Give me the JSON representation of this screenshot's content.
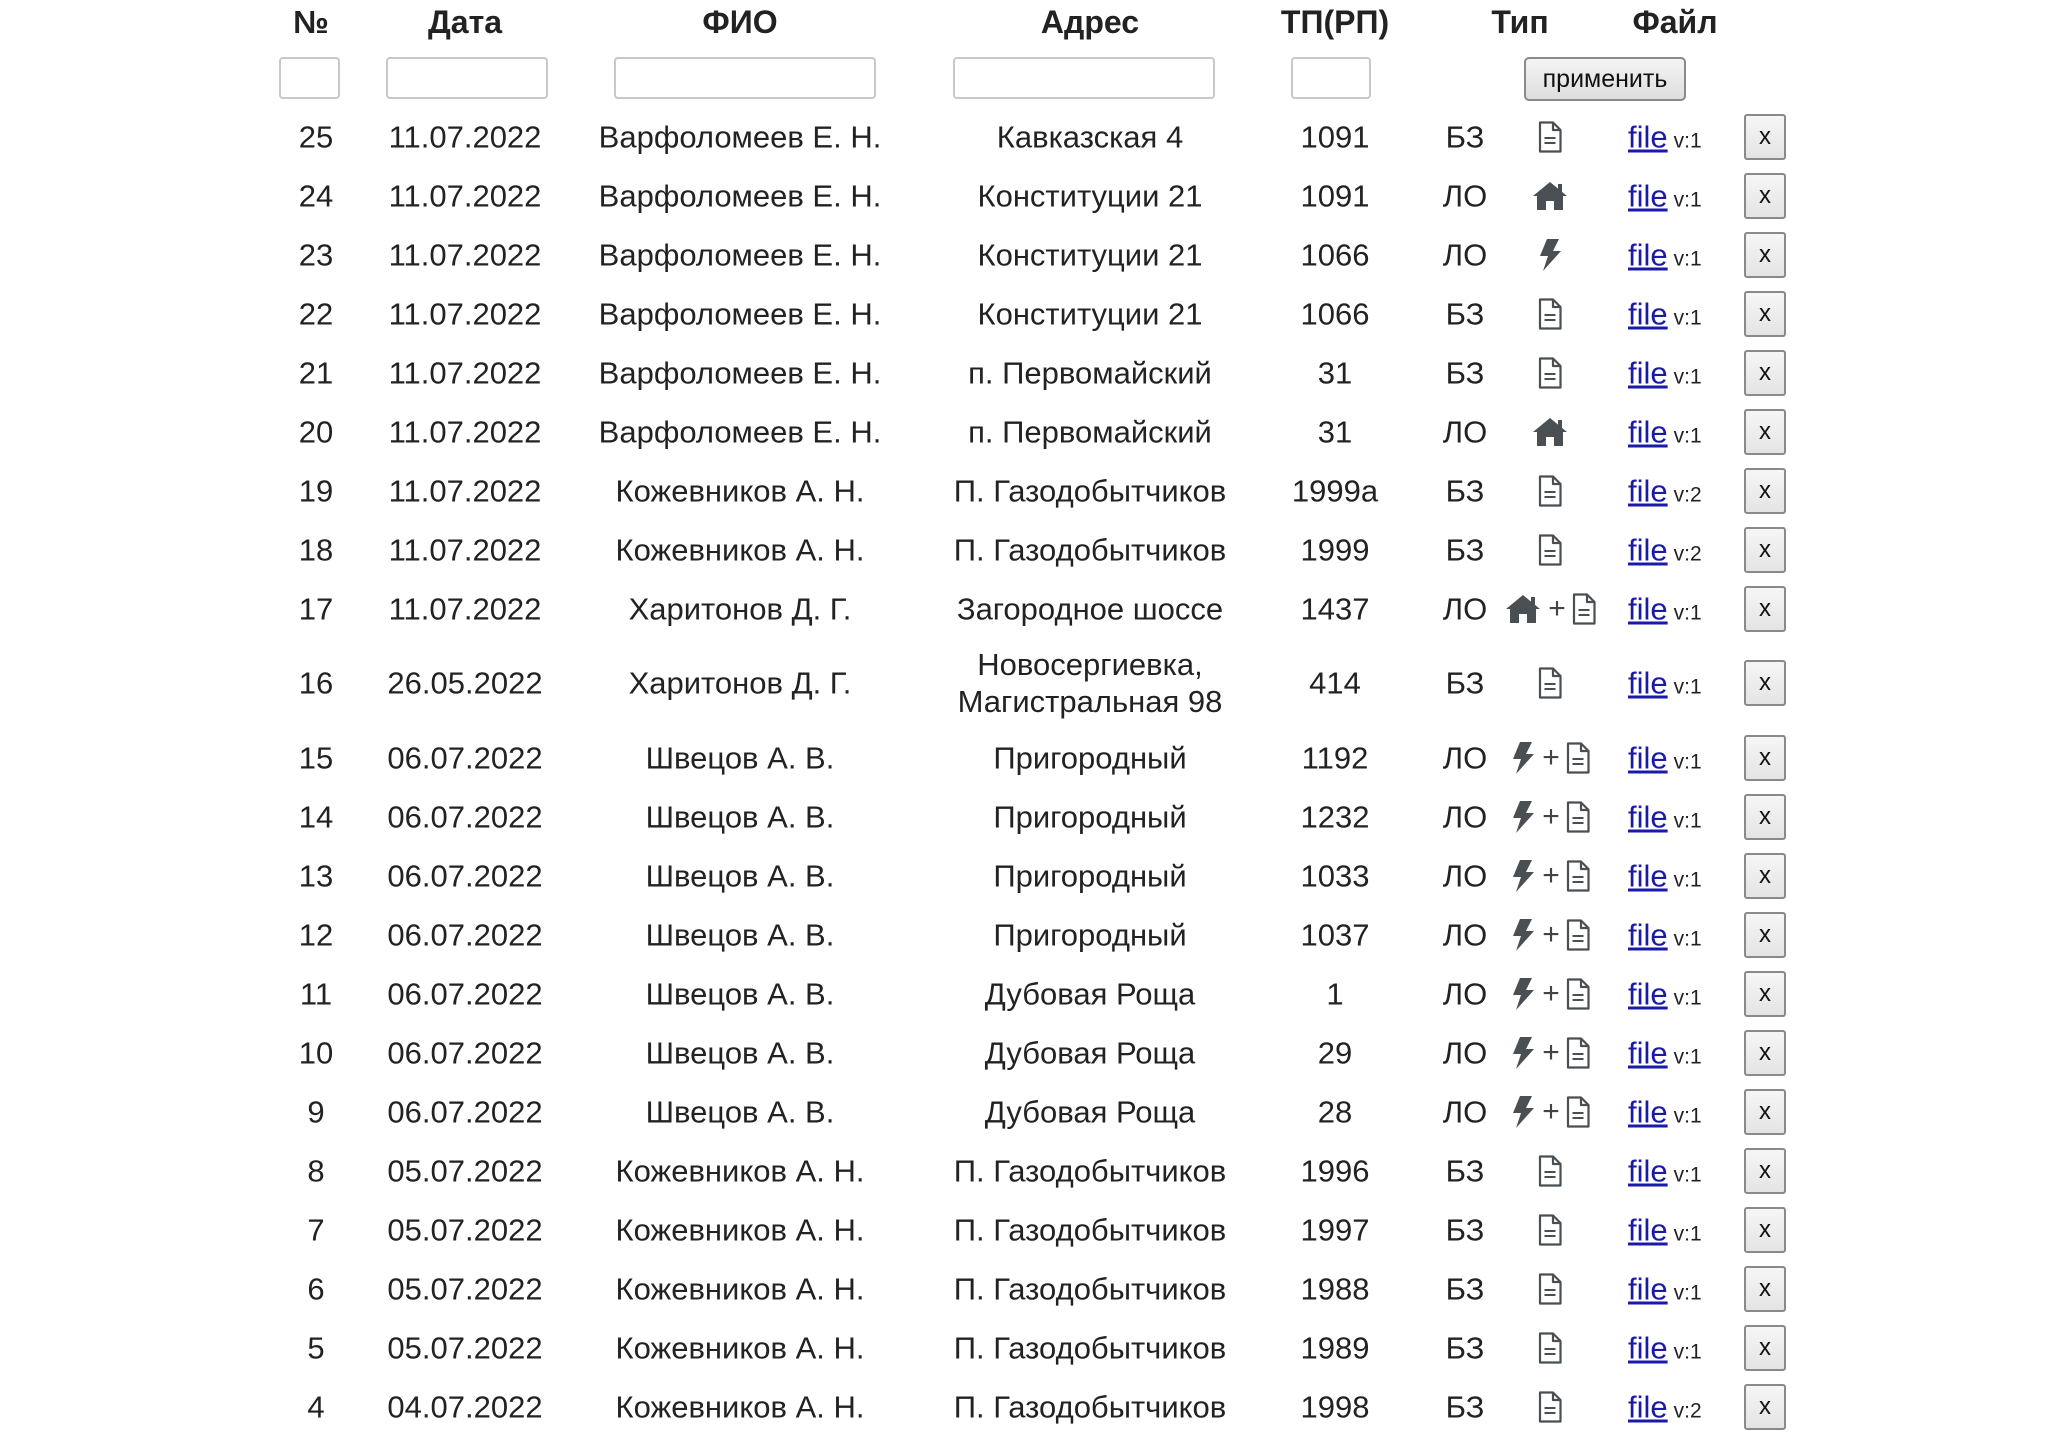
{
  "header": {
    "num": "№",
    "date": "Дата",
    "name": "ФИО",
    "address": "Адрес",
    "tp": "ТП(РП)",
    "type": "Тип",
    "file": "Файл"
  },
  "filters": {
    "num_value": "",
    "date_value": "",
    "name_value": "",
    "address_value": "",
    "tp_value": "",
    "apply_label": "применить"
  },
  "colors": {
    "link": "#1a1aa8",
    "icon": "#4a4f54",
    "text": "#222222"
  },
  "rows": [
    {
      "num": "25",
      "date": "11.07.2022",
      "name": "Варфоломеев Е. Н.",
      "address": "Кавказская 4",
      "tp": "1091",
      "kind": "БЗ",
      "icons": [
        "document-icon"
      ],
      "file": "file",
      "version": "v:1",
      "delete": "x"
    },
    {
      "num": "24",
      "date": "11.07.2022",
      "name": "Варфоломеев Е. Н.",
      "address": "Конституции 21",
      "tp": "1091",
      "kind": "ЛО",
      "icons": [
        "house-icon"
      ],
      "file": "file",
      "version": "v:1",
      "delete": "x"
    },
    {
      "num": "23",
      "date": "11.07.2022",
      "name": "Варфоломеев Е. Н.",
      "address": "Конституции 21",
      "tp": "1066",
      "kind": "ЛО",
      "icons": [
        "lightning-icon"
      ],
      "file": "file",
      "version": "v:1",
      "delete": "x"
    },
    {
      "num": "22",
      "date": "11.07.2022",
      "name": "Варфоломеев Е. Н.",
      "address": "Конституции 21",
      "tp": "1066",
      "kind": "БЗ",
      "icons": [
        "document-icon"
      ],
      "file": "file",
      "version": "v:1",
      "delete": "x"
    },
    {
      "num": "21",
      "date": "11.07.2022",
      "name": "Варфоломеев Е. Н.",
      "address": "п. Первомайский",
      "tp": "31",
      "kind": "БЗ",
      "icons": [
        "document-icon"
      ],
      "file": "file",
      "version": "v:1",
      "delete": "x"
    },
    {
      "num": "20",
      "date": "11.07.2022",
      "name": "Варфоломеев Е. Н.",
      "address": "п. Первомайский",
      "tp": "31",
      "kind": "ЛО",
      "icons": [
        "house-icon"
      ],
      "file": "file",
      "version": "v:1",
      "delete": "x"
    },
    {
      "num": "19",
      "date": "11.07.2022",
      "name": "Кожевников А. Н.",
      "address": "П. Газодобытчиков",
      "tp": "1999а",
      "kind": "БЗ",
      "icons": [
        "document-icon"
      ],
      "file": "file",
      "version": "v:2",
      "delete": "x"
    },
    {
      "num": "18",
      "date": "11.07.2022",
      "name": "Кожевников А. Н.",
      "address": "П. Газодобытчиков",
      "tp": "1999",
      "kind": "БЗ",
      "icons": [
        "document-icon"
      ],
      "file": "file",
      "version": "v:2",
      "delete": "x"
    },
    {
      "num": "17",
      "date": "11.07.2022",
      "name": "Харитонов Д. Г.",
      "address": "Загородное шоссе",
      "tp": "1437",
      "kind": "ЛО",
      "icons": [
        "house-icon",
        "document-icon"
      ],
      "file": "file",
      "version": "v:1",
      "delete": "x"
    },
    {
      "num": "16",
      "date": "26.05.2022",
      "name": "Харитонов Д. Г.",
      "address": "Новосергиевка,",
      "address2": "Магистральная 98",
      "tp": "414",
      "kind": "БЗ",
      "icons": [
        "document-icon"
      ],
      "file": "file",
      "version": "v:1",
      "delete": "x"
    },
    {
      "num": "15",
      "date": "06.07.2022",
      "name": "Швецов А. В.",
      "address": "Пригородный",
      "tp": "1192",
      "kind": "ЛО",
      "icons": [
        "lightning-icon",
        "document-icon"
      ],
      "file": "file",
      "version": "v:1",
      "delete": "x"
    },
    {
      "num": "14",
      "date": "06.07.2022",
      "name": "Швецов А. В.",
      "address": "Пригородный",
      "tp": "1232",
      "kind": "ЛО",
      "icons": [
        "lightning-icon",
        "document-icon"
      ],
      "file": "file",
      "version": "v:1",
      "delete": "x"
    },
    {
      "num": "13",
      "date": "06.07.2022",
      "name": "Швецов А. В.",
      "address": "Пригородный",
      "tp": "1033",
      "kind": "ЛО",
      "icons": [
        "lightning-icon",
        "document-icon"
      ],
      "file": "file",
      "version": "v:1",
      "delete": "x"
    },
    {
      "num": "12",
      "date": "06.07.2022",
      "name": "Швецов А. В.",
      "address": "Пригородный",
      "tp": "1037",
      "kind": "ЛО",
      "icons": [
        "lightning-icon",
        "document-icon"
      ],
      "file": "file",
      "version": "v:1",
      "delete": "x"
    },
    {
      "num": "11",
      "date": "06.07.2022",
      "name": "Швецов А. В.",
      "address": "Дубовая Роща",
      "tp": "1",
      "kind": "ЛО",
      "icons": [
        "lightning-icon",
        "document-icon"
      ],
      "file": "file",
      "version": "v:1",
      "delete": "x"
    },
    {
      "num": "10",
      "date": "06.07.2022",
      "name": "Швецов А. В.",
      "address": "Дубовая Роща",
      "tp": "29",
      "kind": "ЛО",
      "icons": [
        "lightning-icon",
        "document-icon"
      ],
      "file": "file",
      "version": "v:1",
      "delete": "x"
    },
    {
      "num": "9",
      "date": "06.07.2022",
      "name": "Швецов А. В.",
      "address": "Дубовая Роща",
      "tp": "28",
      "kind": "ЛО",
      "icons": [
        "lightning-icon",
        "document-icon"
      ],
      "file": "file",
      "version": "v:1",
      "delete": "x"
    },
    {
      "num": "8",
      "date": "05.07.2022",
      "name": "Кожевников А. Н.",
      "address": "П. Газодобытчиков",
      "tp": "1996",
      "kind": "БЗ",
      "icons": [
        "document-icon"
      ],
      "file": "file",
      "version": "v:1",
      "delete": "x"
    },
    {
      "num": "7",
      "date": "05.07.2022",
      "name": "Кожевников А. Н.",
      "address": "П. Газодобытчиков",
      "tp": "1997",
      "kind": "БЗ",
      "icons": [
        "document-icon"
      ],
      "file": "file",
      "version": "v:1",
      "delete": "x"
    },
    {
      "num": "6",
      "date": "05.07.2022",
      "name": "Кожевников А. Н.",
      "address": "П. Газодобытчиков",
      "tp": "1988",
      "kind": "БЗ",
      "icons": [
        "document-icon"
      ],
      "file": "file",
      "version": "v:1",
      "delete": "x"
    },
    {
      "num": "5",
      "date": "05.07.2022",
      "name": "Кожевников А. Н.",
      "address": "П. Газодобытчиков",
      "tp": "1989",
      "kind": "БЗ",
      "icons": [
        "document-icon"
      ],
      "file": "file",
      "version": "v:1",
      "delete": "x"
    },
    {
      "num": "4",
      "date": "04.07.2022",
      "name": "Кожевников А. Н.",
      "address": "П. Газодобытчиков",
      "tp": "1998",
      "kind": "БЗ",
      "icons": [
        "document-icon"
      ],
      "file": "file",
      "version": "v:2",
      "delete": "x"
    }
  ]
}
